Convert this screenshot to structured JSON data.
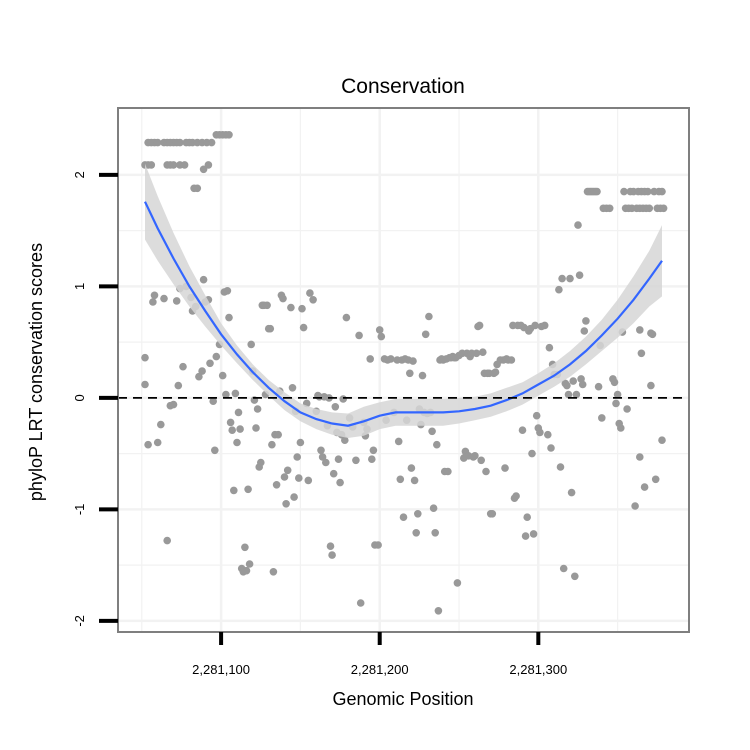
{
  "chart_data": {
    "type": "scatter",
    "title": "Conservation",
    "xlabel": "Genomic Position",
    "ylabel": "phyloP LRT conservation scores",
    "xlim": [
      2281035,
      2281395
    ],
    "ylim": [
      -2.1,
      2.6
    ],
    "x_ticks": [
      2281100,
      2281200,
      2281300
    ],
    "x_tick_labels": [
      "2,281,100",
      "2,281,200",
      "2,281,300"
    ],
    "y_ticks": [
      -2,
      -1,
      0,
      1,
      2
    ],
    "y_tick_labels": [
      "-2",
      "-1",
      "0",
      "1",
      "2"
    ],
    "reference_line": {
      "y": 0,
      "style": "dashed"
    },
    "colors": {
      "points": "#999999",
      "smooth_line": "#3366FF",
      "confidence_band": "#d6d6d6",
      "panel_background": "#ffffff",
      "grid": "#f2f2f2",
      "panel_border": "#7f7f7f"
    },
    "points": [
      [
        2281052,
        2.09
      ],
      [
        2281054,
        2.09
      ],
      [
        2281056,
        2.09
      ],
      [
        2281054,
        2.29
      ],
      [
        2281056,
        2.29
      ],
      [
        2281058,
        2.29
      ],
      [
        2281060,
        2.29
      ],
      [
        2281064,
        2.29
      ],
      [
        2281066,
        2.29
      ],
      [
        2281068,
        2.29
      ],
      [
        2281070,
        2.29
      ],
      [
        2281072,
        2.29
      ],
      [
        2281074,
        2.29
      ],
      [
        2281078,
        2.29
      ],
      [
        2281080,
        2.29
      ],
      [
        2281082,
        2.29
      ],
      [
        2281085,
        2.29
      ],
      [
        2281088,
        2.29
      ],
      [
        2281091,
        2.29
      ],
      [
        2281094,
        2.29
      ],
      [
        2281097,
        2.36
      ],
      [
        2281099,
        2.36
      ],
      [
        2281101,
        2.36
      ],
      [
        2281103,
        2.36
      ],
      [
        2281105,
        2.36
      ],
      [
        2281066,
        2.09
      ],
      [
        2281068,
        2.09
      ],
      [
        2281070,
        2.09
      ],
      [
        2281074,
        2.09
      ],
      [
        2281077,
        2.09
      ],
      [
        2281089,
        2.05
      ],
      [
        2281092,
        2.09
      ],
      [
        2281083,
        1.88
      ],
      [
        2281085,
        1.88
      ],
      [
        2281052,
        0.36
      ],
      [
        2281052,
        0.12
      ],
      [
        2281054,
        -0.42
      ],
      [
        2281057,
        0.86
      ],
      [
        2281058,
        0.92
      ],
      [
        2281060,
        -0.4
      ],
      [
        2281062,
        -0.24
      ],
      [
        2281064,
        0.89
      ],
      [
        2281066,
        -1.28
      ],
      [
        2281068,
        -0.07
      ],
      [
        2281070,
        -0.06
      ],
      [
        2281072,
        0.87
      ],
      [
        2281073,
        0.11
      ],
      [
        2281074,
        0.98
      ],
      [
        2281076,
        0.28
      ],
      [
        2281078,
        1.0
      ],
      [
        2281081,
        0.9
      ],
      [
        2281082,
        0.78
      ],
      [
        2281084,
        0.82
      ],
      [
        2281086,
        0.19
      ],
      [
        2281088,
        0.24
      ],
      [
        2281089,
        1.06
      ],
      [
        2281090,
        0.86
      ],
      [
        2281092,
        0.88
      ],
      [
        2281093,
        0.31
      ],
      [
        2281095,
        -0.03
      ],
      [
        2281096,
        -0.47
      ],
      [
        2281097,
        0.37
      ],
      [
        2281099,
        0.48
      ],
      [
        2281101,
        0.2
      ],
      [
        2281102,
        0.95
      ],
      [
        2281104,
        0.96
      ],
      [
        2281103,
        0.03
      ],
      [
        2281105,
        0.72
      ],
      [
        2281106,
        -0.22
      ],
      [
        2281107,
        -0.29
      ],
      [
        2281108,
        -0.83
      ],
      [
        2281109,
        0.04
      ],
      [
        2281110,
        -0.4
      ],
      [
        2281111,
        -0.13
      ],
      [
        2281112,
        -0.28
      ],
      [
        2281113,
        -1.53
      ],
      [
        2281114,
        -1.56
      ],
      [
        2281115,
        -1.34
      ],
      [
        2281116,
        -1.55
      ],
      [
        2281117,
        -0.82
      ],
      [
        2281118,
        -1.49
      ],
      [
        2281119,
        0.48
      ],
      [
        2281120,
        0.24
      ],
      [
        2281121,
        -0.02
      ],
      [
        2281122,
        -0.27
      ],
      [
        2281123,
        -0.1
      ],
      [
        2281124,
        -0.62
      ],
      [
        2281125,
        -0.58
      ],
      [
        2281126,
        0.83
      ],
      [
        2281127,
        0.83
      ],
      [
        2281128,
        0.03
      ],
      [
        2281129,
        0.83
      ],
      [
        2281130,
        0.62
      ],
      [
        2281131,
        0.62
      ],
      [
        2281132,
        -0.42
      ],
      [
        2281133,
        -1.56
      ],
      [
        2281134,
        -0.33
      ],
      [
        2281135,
        -0.78
      ],
      [
        2281136,
        -0.33
      ],
      [
        2281137,
        0.06
      ],
      [
        2281138,
        0.92
      ],
      [
        2281139,
        0.89
      ],
      [
        2281140,
        -0.71
      ],
      [
        2281141,
        -0.95
      ],
      [
        2281142,
        -0.65
      ],
      [
        2281144,
        0.81
      ],
      [
        2281145,
        0.09
      ],
      [
        2281146,
        -0.89
      ],
      [
        2281147,
        -0.12
      ],
      [
        2281148,
        -0.53
      ],
      [
        2281149,
        -0.72
      ],
      [
        2281150,
        -0.4
      ],
      [
        2281151,
        0.8
      ],
      [
        2281152,
        0.63
      ],
      [
        2281154,
        -0.05
      ],
      [
        2281155,
        -0.74
      ],
      [
        2281156,
        0.94
      ],
      [
        2281158,
        0.88
      ],
      [
        2281160,
        -0.12
      ],
      [
        2281161,
        0.02
      ],
      [
        2281162,
        0.01
      ],
      [
        2281163,
        -0.47
      ],
      [
        2281164,
        -0.53
      ],
      [
        2281165,
        0.01
      ],
      [
        2281166,
        -0.58
      ],
      [
        2281167,
        -0.25
      ],
      [
        2281168,
        0.0
      ],
      [
        2281169,
        -1.33
      ],
      [
        2281170,
        -1.41
      ],
      [
        2281171,
        -0.68
      ],
      [
        2281172,
        -0.08
      ],
      [
        2281173,
        -0.31
      ],
      [
        2281174,
        -0.55
      ],
      [
        2281175,
        -0.76
      ],
      [
        2281176,
        -0.33
      ],
      [
        2281177,
        -0.01
      ],
      [
        2281178,
        -0.38
      ],
      [
        2281179,
        0.72
      ],
      [
        2281181,
        -0.18
      ],
      [
        2281183,
        -0.26
      ],
      [
        2281185,
        -0.56
      ],
      [
        2281187,
        0.56
      ],
      [
        2281188,
        -1.84
      ],
      [
        2281190,
        -0.22
      ],
      [
        2281191,
        -0.34
      ],
      [
        2281192,
        -0.28
      ],
      [
        2281194,
        0.35
      ],
      [
        2281195,
        -0.55
      ],
      [
        2281196,
        -0.47
      ],
      [
        2281197,
        -1.32
      ],
      [
        2281199,
        -1.32
      ],
      [
        2281200,
        0.61
      ],
      [
        2281201,
        0.55
      ],
      [
        2281203,
        0.35
      ],
      [
        2281204,
        -0.2
      ],
      [
        2281205,
        0.34
      ],
      [
        2281207,
        0.35
      ],
      [
        2281209,
        -0.13
      ],
      [
        2281211,
        0.34
      ],
      [
        2281212,
        -0.39
      ],
      [
        2281213,
        -0.73
      ],
      [
        2281214,
        0.34
      ],
      [
        2281215,
        -1.07
      ],
      [
        2281216,
        0.35
      ],
      [
        2281217,
        -0.2
      ],
      [
        2281218,
        0.34
      ],
      [
        2281219,
        0.22
      ],
      [
        2281220,
        -0.63
      ],
      [
        2281221,
        0.33
      ],
      [
        2281222,
        -0.74
      ],
      [
        2281223,
        -1.21
      ],
      [
        2281224,
        -1.04
      ],
      [
        2281225,
        -0.1
      ],
      [
        2281226,
        -0.24
      ],
      [
        2281227,
        0.2
      ],
      [
        2281228,
        -0.13
      ],
      [
        2281229,
        0.57
      ],
      [
        2281230,
        -0.14
      ],
      [
        2281231,
        0.73
      ],
      [
        2281232,
        -0.13
      ],
      [
        2281233,
        -0.3
      ],
      [
        2281234,
        -0.99
      ],
      [
        2281235,
        -1.21
      ],
      [
        2281236,
        -0.42
      ],
      [
        2281237,
        -1.91
      ],
      [
        2281238,
        0.34
      ],
      [
        2281239,
        0.35
      ],
      [
        2281240,
        0.34
      ],
      [
        2281241,
        -0.66
      ],
      [
        2281242,
        0.35
      ],
      [
        2281243,
        -0.66
      ],
      [
        2281244,
        0.36
      ],
      [
        2281245,
        0.36
      ],
      [
        2281246,
        0.37
      ],
      [
        2281247,
        0.36
      ],
      [
        2281248,
        0.36
      ],
      [
        2281249,
        -1.66
      ],
      [
        2281250,
        0.38
      ],
      [
        2281252,
        0.4
      ],
      [
        2281253,
        -0.54
      ],
      [
        2281254,
        -0.48
      ],
      [
        2281255,
        0.4
      ],
      [
        2281256,
        -0.52
      ],
      [
        2281257,
        0.37
      ],
      [
        2281258,
        0.4
      ],
      [
        2281259,
        -0.53
      ],
      [
        2281260,
        -0.52
      ],
      [
        2281261,
        0.4
      ],
      [
        2281262,
        0.64
      ],
      [
        2281263,
        0.65
      ],
      [
        2281264,
        -0.56
      ],
      [
        2281265,
        0.41
      ],
      [
        2281266,
        0.22
      ],
      [
        2281267,
        -0.66
      ],
      [
        2281268,
        0.22
      ],
      [
        2281269,
        0.22
      ],
      [
        2281270,
        -1.04
      ],
      [
        2281271,
        -1.04
      ],
      [
        2281272,
        0.22
      ],
      [
        2281273,
        0.23
      ],
      [
        2281274,
        0.3
      ],
      [
        2281276,
        0.34
      ],
      [
        2281278,
        0.34
      ],
      [
        2281279,
        -0.63
      ],
      [
        2281280,
        0.35
      ],
      [
        2281281,
        0.34
      ],
      [
        2281283,
        0.34
      ],
      [
        2281284,
        0.65
      ],
      [
        2281285,
        -0.9
      ],
      [
        2281286,
        -0.88
      ],
      [
        2281287,
        0.65
      ],
      [
        2281289,
        0.65
      ],
      [
        2281290,
        -0.29
      ],
      [
        2281291,
        0.63
      ],
      [
        2281292,
        -1.24
      ],
      [
        2281293,
        -1.07
      ],
      [
        2281294,
        0.6
      ],
      [
        2281295,
        0.62
      ],
      [
        2281296,
        -0.5
      ],
      [
        2281297,
        -1.22
      ],
      [
        2281298,
        0.65
      ],
      [
        2281299,
        -0.16
      ],
      [
        2281300,
        -0.27
      ],
      [
        2281301,
        -0.31
      ],
      [
        2281302,
        0.64
      ],
      [
        2281304,
        0.65
      ],
      [
        2281306,
        -0.33
      ],
      [
        2281307,
        0.45
      ],
      [
        2281308,
        -0.45
      ],
      [
        2281309,
        0.3
      ],
      [
        2281310,
        0.21
      ],
      [
        2281312,
        0.21
      ],
      [
        2281313,
        0.97
      ],
      [
        2281314,
        -0.62
      ],
      [
        2281315,
        1.07
      ],
      [
        2281316,
        -1.53
      ],
      [
        2281317,
        0.13
      ],
      [
        2281318,
        0.11
      ],
      [
        2281319,
        0.03
      ],
      [
        2281320,
        1.07
      ],
      [
        2281321,
        -0.85
      ],
      [
        2281322,
        0.15
      ],
      [
        2281323,
        -1.6
      ],
      [
        2281324,
        0.03
      ],
      [
        2281325,
        1.55
      ],
      [
        2281326,
        1.1
      ],
      [
        2281327,
        0.17
      ],
      [
        2281328,
        0.12
      ],
      [
        2281329,
        0.6
      ],
      [
        2281330,
        0.69
      ],
      [
        2281331,
        1.85
      ],
      [
        2281332,
        1.85
      ],
      [
        2281333,
        1.85
      ],
      [
        2281334,
        1.85
      ],
      [
        2281335,
        1.85
      ],
      [
        2281336,
        1.85
      ],
      [
        2281337,
        1.85
      ],
      [
        2281338,
        0.1
      ],
      [
        2281339,
        0.47
      ],
      [
        2281340,
        -0.18
      ],
      [
        2281341,
        1.7
      ],
      [
        2281343,
        1.7
      ],
      [
        2281345,
        1.7
      ],
      [
        2281347,
        0.17
      ],
      [
        2281348,
        0.14
      ],
      [
        2281349,
        -0.05
      ],
      [
        2281350,
        0.03
      ],
      [
        2281351,
        -0.23
      ],
      [
        2281352,
        -0.27
      ],
      [
        2281353,
        0.59
      ],
      [
        2281354,
        1.85
      ],
      [
        2281355,
        1.7
      ],
      [
        2281356,
        -0.1
      ],
      [
        2281357,
        1.7
      ],
      [
        2281358,
        1.85
      ],
      [
        2281359,
        1.7
      ],
      [
        2281360,
        1.85
      ],
      [
        2281361,
        -0.97
      ],
      [
        2281362,
        1.7
      ],
      [
        2281363,
        1.85
      ],
      [
        2281364,
        1.7
      ],
      [
        2281365,
        1.85
      ],
      [
        2281366,
        1.7
      ],
      [
        2281367,
        1.85
      ],
      [
        2281368,
        1.7
      ],
      [
        2281369,
        1.85
      ],
      [
        2281370,
        1.7
      ],
      [
        2281371,
        0.58
      ],
      [
        2281371,
        0.11
      ],
      [
        2281372,
        0.57
      ],
      [
        2281373,
        1.85
      ],
      [
        2281374,
        -0.73
      ],
      [
        2281375,
        1.7
      ],
      [
        2281376,
        1.85
      ],
      [
        2281377,
        1.7
      ],
      [
        2281378,
        -0.38
      ],
      [
        2281378,
        1.85
      ],
      [
        2281379,
        1.7
      ],
      [
        2281364,
        0.61
      ],
      [
        2281365,
        0.4
      ],
      [
        2281364,
        -0.53
      ],
      [
        2281367,
        -0.8
      ]
    ],
    "smooth": {
      "x": [
        2281052,
        2281060,
        2281070,
        2281080,
        2281090,
        2281100,
        2281110,
        2281120,
        2281130,
        2281140,
        2281150,
        2281160,
        2281170,
        2281180,
        2281190,
        2281200,
        2281210,
        2281220,
        2281230,
        2281240,
        2281250,
        2281260,
        2281270,
        2281280,
        2281290,
        2281300,
        2281310,
        2281320,
        2281330,
        2281340,
        2281350,
        2281360,
        2281370,
        2281378
      ],
      "y": [
        1.76,
        1.52,
        1.25,
        1.0,
        0.78,
        0.57,
        0.39,
        0.23,
        0.09,
        -0.03,
        -0.13,
        -0.19,
        -0.23,
        -0.25,
        -0.21,
        -0.16,
        -0.13,
        -0.13,
        -0.13,
        -0.13,
        -0.12,
        -0.1,
        -0.07,
        -0.02,
        0.04,
        0.12,
        0.2,
        0.3,
        0.42,
        0.56,
        0.71,
        0.88,
        1.07,
        1.23
      ],
      "lower": [
        1.42,
        1.23,
        1.02,
        0.82,
        0.64,
        0.47,
        0.31,
        0.16,
        0.02,
        -0.11,
        -0.21,
        -0.28,
        -0.33,
        -0.36,
        -0.34,
        -0.28,
        -0.25,
        -0.25,
        -0.25,
        -0.25,
        -0.23,
        -0.2,
        -0.17,
        -0.12,
        -0.06,
        0.02,
        0.1,
        0.19,
        0.3,
        0.42,
        0.54,
        0.67,
        0.82,
        0.91
      ],
      "upper": [
        2.1,
        1.81,
        1.48,
        1.18,
        0.92,
        0.67,
        0.47,
        0.3,
        0.16,
        0.05,
        -0.05,
        -0.1,
        -0.13,
        -0.14,
        -0.08,
        -0.04,
        -0.01,
        -0.01,
        -0.01,
        -0.01,
        0.0,
        0.01,
        0.04,
        0.09,
        0.14,
        0.22,
        0.31,
        0.42,
        0.55,
        0.7,
        0.88,
        1.09,
        1.32,
        1.55
      ]
    }
  }
}
